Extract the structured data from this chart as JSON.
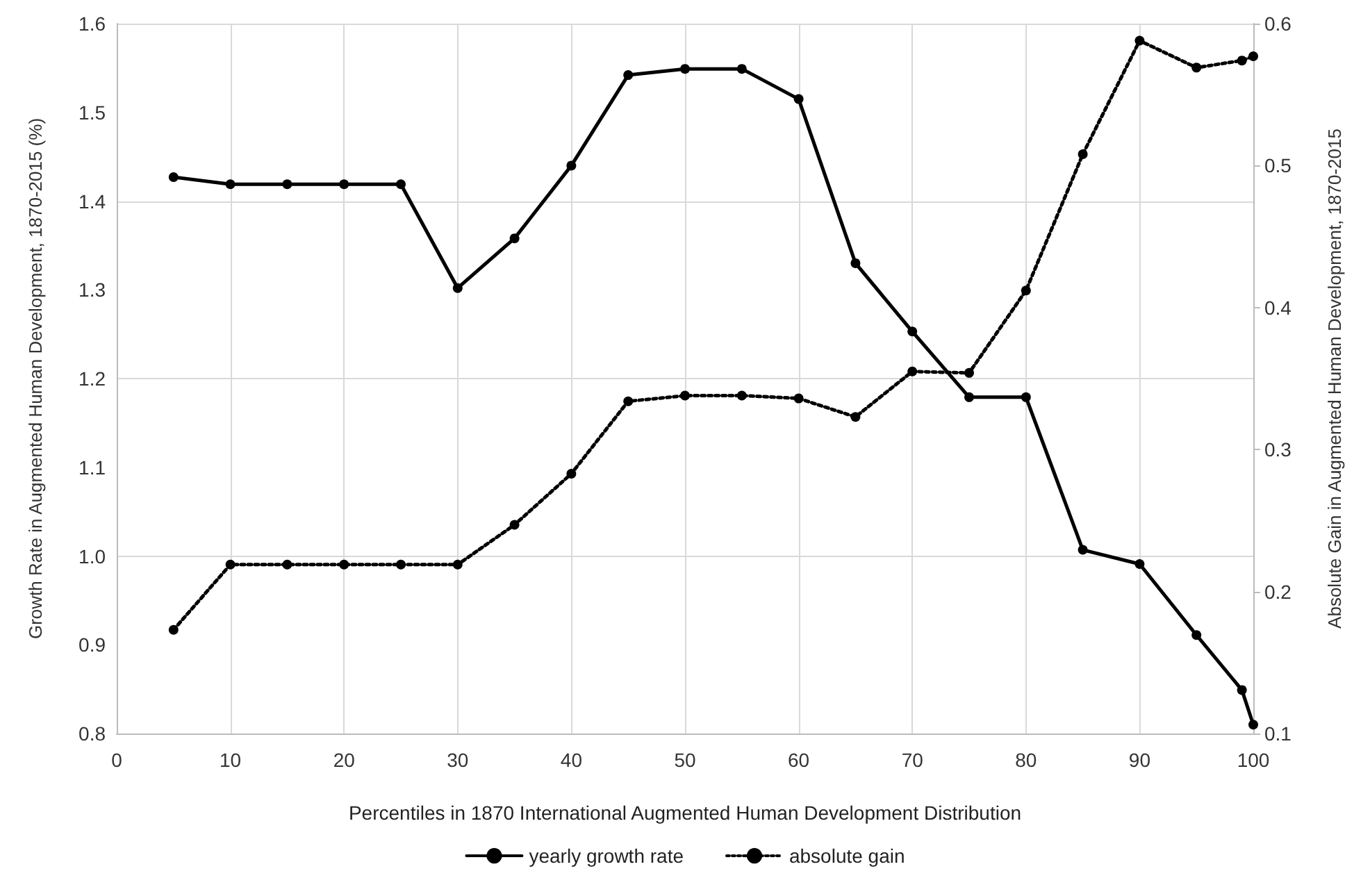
{
  "chart_data": {
    "type": "line",
    "xlabel": "Percentiles in 1870 International Augmented Human Development Distribution",
    "ylabel": "Growth Rate in Augmented Human Development, 1870-2015 (%)",
    "y2label": "Absolute Gain in Augmented Human Development, 1870-2015",
    "x": [
      5,
      10,
      15,
      20,
      25,
      30,
      35,
      40,
      45,
      50,
      55,
      60,
      65,
      70,
      75,
      80,
      85,
      90,
      95,
      99,
      100
    ],
    "series": [
      {
        "name": "yearly growth rate",
        "color": "#000000",
        "line_style": "solid",
        "values": [
          1.427,
          1.419,
          1.419,
          1.419,
          1.419,
          1.302,
          1.358,
          1.44,
          1.542,
          1.549,
          1.549,
          1.515,
          1.33,
          1.253,
          1.179,
          1.179,
          1.007,
          0.991,
          0.911,
          0.849,
          0.81
        ]
      },
      {
        "name": "absolute gain",
        "color": "#000000",
        "line_style": "dotted",
        "axis": "y2",
        "values": [
          0.173,
          0.219,
          0.219,
          0.219,
          0.219,
          0.219,
          0.247,
          0.283,
          0.334,
          0.338,
          0.338,
          0.336,
          0.323,
          0.355,
          0.354,
          0.412,
          0.508,
          0.588,
          0.569,
          0.574,
          0.577
        ]
      }
    ],
    "xlim": [
      0,
      100
    ],
    "xticks": [
      0,
      10,
      20,
      30,
      40,
      50,
      60,
      70,
      80,
      90,
      100
    ],
    "ylim": [
      0.8,
      1.6
    ],
    "yticks": [
      {
        "value": 0.8,
        "label": "0.8"
      },
      {
        "value": 0.9,
        "label": "0.9"
      },
      {
        "value": 1.0,
        "label": "1.0"
      },
      {
        "value": 1.1,
        "label": "1.1"
      },
      {
        "value": 1.2,
        "label": "1.2"
      },
      {
        "value": 1.3,
        "label": "1.3"
      },
      {
        "value": 1.4,
        "label": "1.4"
      },
      {
        "value": 1.5,
        "label": "1.5"
      },
      {
        "value": 1.6,
        "label": "1.6"
      }
    ],
    "y2lim": [
      0.1,
      0.6
    ],
    "y2ticks": [
      0.1,
      0.2,
      0.3,
      0.4,
      0.5,
      0.6
    ],
    "grid": true,
    "legend": "bottom",
    "marker": "circle"
  }
}
